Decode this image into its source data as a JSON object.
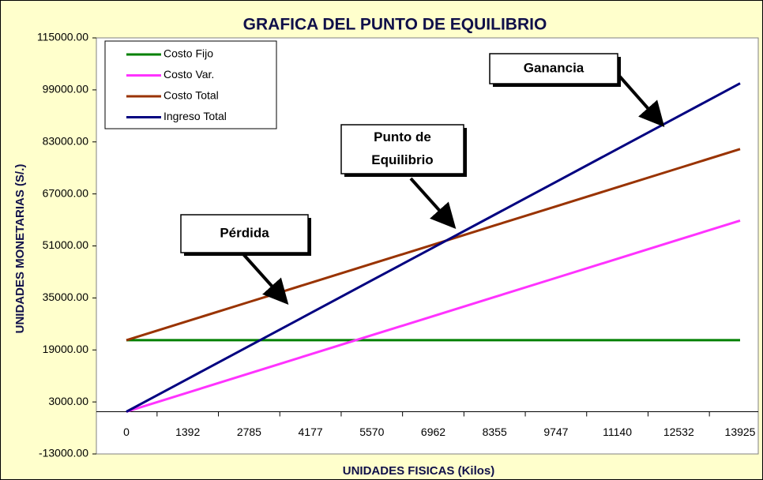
{
  "chart_data": {
    "type": "line",
    "title": "GRAFICA DEL PUNTO DE EQUILIBRIO",
    "x_label": "UNIDADES FISICAS (Kilos)",
    "y_label": "UNIDADES MONETARIAS (S/.)",
    "categories": [
      0,
      1392,
      2785,
      4177,
      5570,
      6962,
      8355,
      9747,
      11140,
      12532,
      13925
    ],
    "series": [
      {
        "name": "Costo Fijo",
        "color": "#008000",
        "values": [
          22000,
          22000,
          22000,
          22000,
          22000,
          22000,
          22000,
          22000,
          22000,
          22000,
          22000
        ]
      },
      {
        "name": "Costo Var.",
        "color": "#ff33ff",
        "values": [
          0,
          5880,
          11760,
          17640,
          23520,
          29400,
          35280,
          41160,
          47040,
          52920,
          58800
        ]
      },
      {
        "name": "Costo Total",
        "color": "#993300",
        "values": [
          22000,
          27880,
          33760,
          39640,
          45520,
          51400,
          57280,
          63160,
          69040,
          74920,
          80800
        ]
      },
      {
        "name": "Ingreso Total",
        "color": "#000080",
        "values": [
          0,
          10100,
          20200,
          30300,
          40400,
          50500,
          60600,
          70700,
          80800,
          90900,
          101000
        ]
      }
    ],
    "ylim": [
      -13000,
      115000
    ],
    "yticks": [
      {
        "value": -13000,
        "label": "-13000.00"
      },
      {
        "value": 3000,
        "label": "3000.00"
      },
      {
        "value": 19000,
        "label": "19000.00"
      },
      {
        "value": 35000,
        "label": "35000.00"
      },
      {
        "value": 51000,
        "label": "51000.00"
      },
      {
        "value": 67000,
        "label": "67000.00"
      },
      {
        "value": 83000,
        "label": "83000.00"
      },
      {
        "value": 99000,
        "label": "99000.00"
      },
      {
        "value": 115000,
        "label": "115000.00"
      }
    ],
    "legend": "top-left",
    "annotations": [
      [
        "Ganancia"
      ],
      [
        "Punto de",
        "Equilibrio"
      ],
      [
        "Pérdida"
      ]
    ]
  }
}
